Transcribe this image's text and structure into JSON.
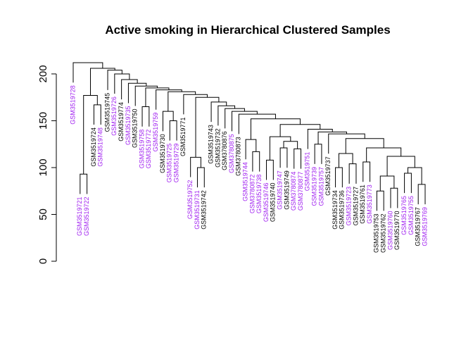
{
  "chart_data": {
    "type": "dendrogram",
    "title": "Active smoking in Hierarchical Clustered Samples",
    "ylim": [
      0,
      212
    ],
    "yticks": [
      0,
      50,
      100,
      150,
      200
    ],
    "leaves": [
      {
        "label": "GSM3519728",
        "color": "#a020f0"
      },
      {
        "label": "GSM3519721",
        "color": "#a020f0"
      },
      {
        "label": "GSM3519722",
        "color": "#a020f0"
      },
      {
        "label": "GSM3519724",
        "color": "#000000"
      },
      {
        "label": "GSM3519748",
        "color": "#a020f0"
      },
      {
        "label": "GSM3519745",
        "color": "#000000"
      },
      {
        "label": "GSM3519726",
        "color": "#a020f0"
      },
      {
        "label": "GSM3519774",
        "color": "#000000"
      },
      {
        "label": "GSM3519735",
        "color": "#a020f0"
      },
      {
        "label": "GSM3519750",
        "color": "#000000"
      },
      {
        "label": "GSM3519758",
        "color": "#a020f0"
      },
      {
        "label": "GSM3519772",
        "color": "#a020f0"
      },
      {
        "label": "GSM3519759",
        "color": "#a020f0"
      },
      {
        "label": "GSM3519730",
        "color": "#000000"
      },
      {
        "label": "GSM3519725",
        "color": "#a020f0"
      },
      {
        "label": "GSM3519729",
        "color": "#a020f0"
      },
      {
        "label": "GSM3519771",
        "color": "#000000"
      },
      {
        "label": "GSM3519752",
        "color": "#a020f0"
      },
      {
        "label": "GSM3519731",
        "color": "#a020f0"
      },
      {
        "label": "GSM3519742",
        "color": "#000000"
      },
      {
        "label": "GSM3519743",
        "color": "#000000"
      },
      {
        "label": "GSM3519732",
        "color": "#000000"
      },
      {
        "label": "GSM3780876",
        "color": "#000000"
      },
      {
        "label": "GSM3780875",
        "color": "#a020f0"
      },
      {
        "label": "GSM3780873",
        "color": "#000000"
      },
      {
        "label": "GSM3519744",
        "color": "#a020f0"
      },
      {
        "label": "GSM3780872",
        "color": "#a020f0"
      },
      {
        "label": "GSM3519738",
        "color": "#a020f0"
      },
      {
        "label": "GSM3519746",
        "color": "#a020f0"
      },
      {
        "label": "GSM3519740",
        "color": "#000000"
      },
      {
        "label": "GSM3519747",
        "color": "#a020f0"
      },
      {
        "label": "GSM3519749",
        "color": "#000000"
      },
      {
        "label": "GSM3780874",
        "color": "#a020f0"
      },
      {
        "label": "GSM3780877",
        "color": "#a020f0"
      },
      {
        "label": "GSM3519751",
        "color": "#a020f0"
      },
      {
        "label": "GSM3519739",
        "color": "#a020f0"
      },
      {
        "label": "GSM3519757",
        "color": "#a020f0"
      },
      {
        "label": "GSM3519737",
        "color": "#000000"
      },
      {
        "label": "GSM3519734",
        "color": "#000000"
      },
      {
        "label": "GSM3519736",
        "color": "#000000"
      },
      {
        "label": "GSM3519723",
        "color": "#a020f0"
      },
      {
        "label": "GSM3519727",
        "color": "#000000"
      },
      {
        "label": "GSM3519761",
        "color": "#000000"
      },
      {
        "label": "GSM3519773",
        "color": "#a020f0"
      },
      {
        "label": "GSM3519753",
        "color": "#000000"
      },
      {
        "label": "GSM3519762",
        "color": "#000000"
      },
      {
        "label": "GSM3519760",
        "color": "#a020f0"
      },
      {
        "label": "GSM3519770",
        "color": "#000000"
      },
      {
        "label": "GSM3519765",
        "color": "#a020f0"
      },
      {
        "label": "GSM3519755",
        "color": "#a020f0"
      },
      {
        "label": "GSM3519767",
        "color": "#000000"
      },
      {
        "label": "GSM3519769",
        "color": "#a020f0"
      }
    ],
    "merges": [
      [
        -2,
        -3,
        93
      ],
      [
        -4,
        -5,
        167
      ],
      [
        1,
        2,
        177
      ],
      [
        -11,
        -12,
        165
      ],
      [
        -15,
        -16,
        150
      ],
      [
        -14,
        5,
        160
      ],
      [
        -19,
        -20,
        100
      ],
      [
        -18,
        7,
        111
      ],
      [
        -27,
        -28,
        117
      ],
      [
        -26,
        9,
        130
      ],
      [
        -29,
        -30,
        108
      ],
      [
        -33,
        -34,
        120
      ],
      [
        -31,
        -32,
        121
      ],
      [
        13,
        12,
        128
      ],
      [
        11,
        14,
        133
      ],
      [
        -39,
        -40,
        100
      ],
      [
        -41,
        -42,
        104
      ],
      [
        16,
        17,
        115
      ],
      [
        -43,
        -44,
        106
      ],
      [
        -45,
        -46,
        75
      ],
      [
        -47,
        -48,
        78
      ],
      [
        20,
        21,
        91
      ],
      [
        -49,
        -50,
        94
      ],
      [
        -51,
        -52,
        82
      ],
      [
        23,
        24,
        100
      ],
      [
        22,
        25,
        112
      ],
      [
        19,
        26,
        121
      ],
      [
        18,
        27,
        131
      ],
      [
        -38,
        28,
        136
      ],
      [
        -36,
        -37,
        125
      ],
      [
        30,
        29,
        138
      ],
      [
        -35,
        31,
        141
      ],
      [
        15,
        32,
        146
      ],
      [
        10,
        33,
        152
      ],
      [
        -25,
        34,
        157
      ],
      [
        -24,
        35,
        160
      ],
      [
        -23,
        36,
        163
      ],
      [
        -22,
        37,
        166
      ],
      [
        -21,
        38,
        170
      ],
      [
        8,
        39,
        175
      ],
      [
        -17,
        40,
        178
      ],
      [
        6,
        41,
        181
      ],
      [
        -13,
        42,
        183
      ],
      [
        4,
        43,
        185
      ],
      [
        -10,
        44,
        187
      ],
      [
        -9,
        45,
        190
      ],
      [
        -8,
        46,
        194
      ],
      [
        -7,
        47,
        200
      ],
      [
        -6,
        48,
        204
      ],
      [
        3,
        49,
        206
      ],
      [
        -1,
        50,
        212
      ]
    ]
  }
}
